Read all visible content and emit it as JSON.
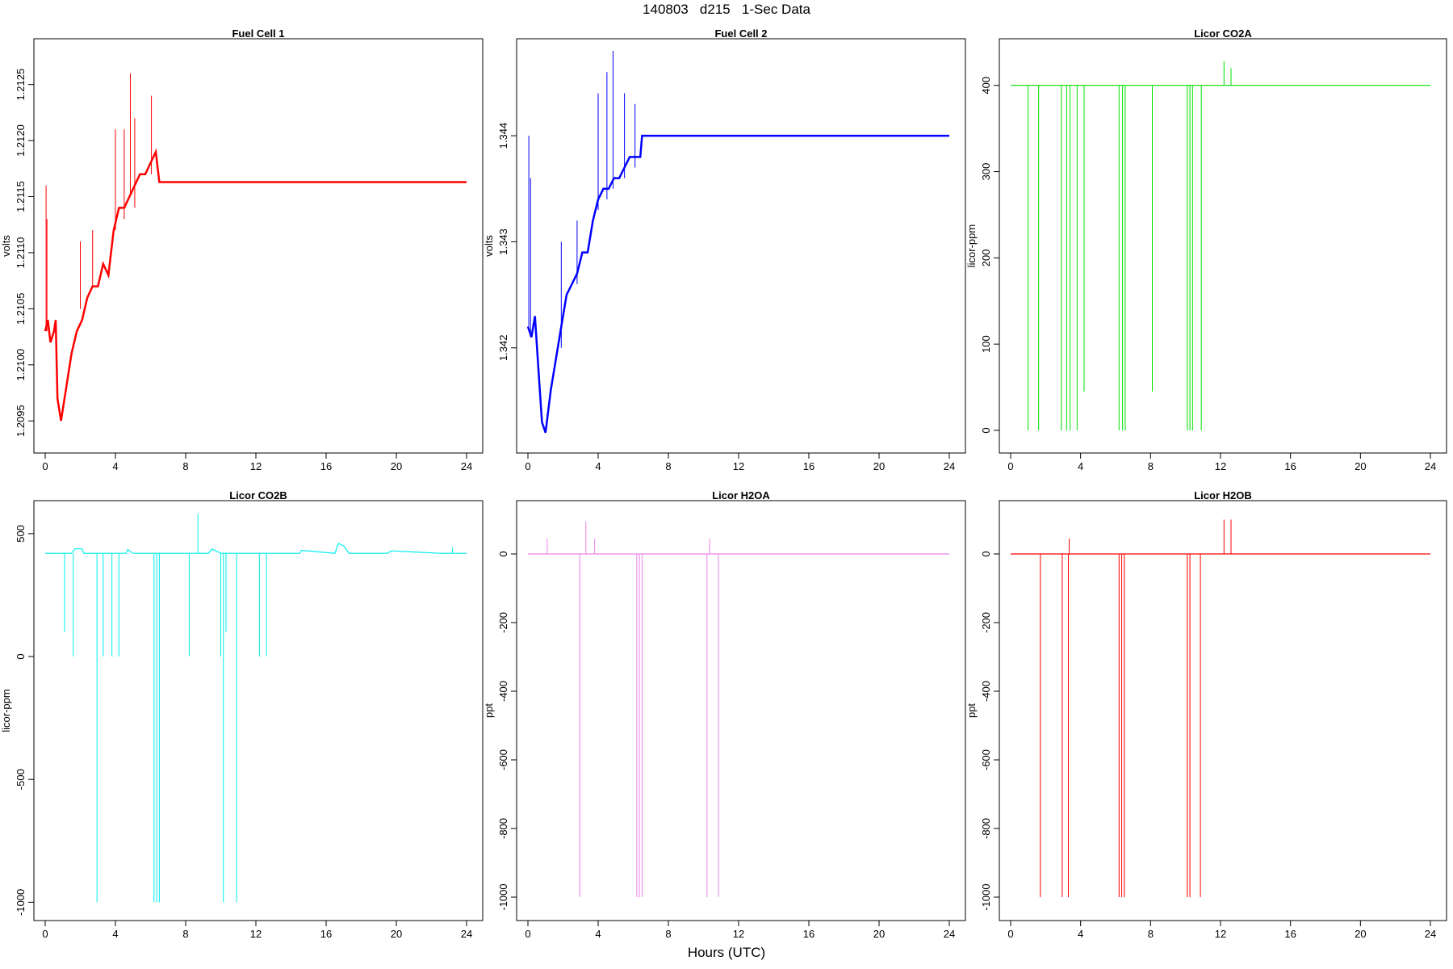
{
  "figure": {
    "title": "140803   d215   1-Sec Data",
    "xlabel": "Hours (UTC)"
  },
  "chart_data": [
    {
      "type": "line",
      "title": "Fuel Cell 1",
      "xlabel": "",
      "ylabel": "volts",
      "color": "#ff0000",
      "xlim": [
        0,
        24
      ],
      "ylim": [
        1.2093,
        1.2128
      ],
      "xticks": [
        0,
        4,
        8,
        12,
        16,
        20,
        24
      ],
      "yticks": [
        1.2095,
        1.21,
        1.2105,
        1.211,
        1.2115,
        1.212,
        1.2125
      ],
      "ytick_labels": [
        "1.2095",
        "1.2100",
        "1.2105",
        "1.2110",
        "1.2115",
        "1.2120",
        "1.2125"
      ],
      "series": [
        {
          "x": [
            0,
            0.15,
            0.3,
            0.5,
            0.6,
            0.7,
            0.9,
            1.2,
            1.5,
            1.8,
            2.1,
            2.4,
            2.7,
            3.0,
            3.3,
            3.6,
            3.9,
            4.2,
            4.5,
            4.8,
            5.1,
            5.4,
            5.7,
            6.0,
            6.3,
            6.5,
            24
          ],
          "y": [
            1.2103,
            1.2104,
            1.2102,
            1.2103,
            1.2104,
            1.2097,
            1.2095,
            1.2098,
            1.2101,
            1.2103,
            1.2104,
            1.2106,
            1.2107,
            1.2107,
            1.2109,
            1.2108,
            1.2112,
            1.2114,
            1.2114,
            1.2115,
            1.2116,
            1.2117,
            1.2117,
            1.2118,
            1.2119,
            1.21163,
            1.21163
          ]
        }
      ],
      "spikes": [
        {
          "x": 0.05,
          "y0": 1.2103,
          "y1": 1.2116
        },
        {
          "x": 0.1,
          "y0": 1.2103,
          "y1": 1.2113
        },
        {
          "x": 2.0,
          "y0": 1.2105,
          "y1": 1.2111
        },
        {
          "x": 2.7,
          "y0": 1.2107,
          "y1": 1.2112
        },
        {
          "x": 4.0,
          "y0": 1.2112,
          "y1": 1.2121
        },
        {
          "x": 4.5,
          "y0": 1.2113,
          "y1": 1.2121
        },
        {
          "x": 4.85,
          "y0": 1.2115,
          "y1": 1.2126
        },
        {
          "x": 5.1,
          "y0": 1.2114,
          "y1": 1.2122
        },
        {
          "x": 6.05,
          "y0": 1.2117,
          "y1": 1.2124
        }
      ]
    },
    {
      "type": "line",
      "title": "Fuel Cell 2",
      "xlabel": "",
      "ylabel": "volts",
      "color": "#0000ff",
      "xlim": [
        0,
        24
      ],
      "ylim": [
        1.3411,
        1.3448
      ],
      "xticks": [
        0,
        4,
        8,
        12,
        16,
        20,
        24
      ],
      "yticks": [
        1.342,
        1.343,
        1.344
      ],
      "ytick_labels": [
        "1.342",
        "1.343",
        "1.344"
      ],
      "series": [
        {
          "x": [
            0,
            0.2,
            0.4,
            0.6,
            0.8,
            1.0,
            1.3,
            1.6,
            1.9,
            2.2,
            2.5,
            2.8,
            3.1,
            3.4,
            3.7,
            4.0,
            4.3,
            4.6,
            4.9,
            5.2,
            5.5,
            5.8,
            6.1,
            6.4,
            6.5,
            24
          ],
          "y": [
            1.3422,
            1.3421,
            1.3423,
            1.3418,
            1.3413,
            1.3412,
            1.3416,
            1.3419,
            1.3422,
            1.3425,
            1.3426,
            1.3427,
            1.3429,
            1.3429,
            1.3432,
            1.3434,
            1.3435,
            1.3435,
            1.3436,
            1.3436,
            1.3437,
            1.3438,
            1.3438,
            1.3438,
            1.344,
            1.344
          ]
        }
      ],
      "spikes": [
        {
          "x": 0.05,
          "y0": 1.3422,
          "y1": 1.344
        },
        {
          "x": 0.15,
          "y0": 1.3421,
          "y1": 1.3436
        },
        {
          "x": 1.9,
          "y0": 1.342,
          "y1": 1.343
        },
        {
          "x": 2.8,
          "y0": 1.3426,
          "y1": 1.3432
        },
        {
          "x": 4.0,
          "y0": 1.3433,
          "y1": 1.3444
        },
        {
          "x": 4.5,
          "y0": 1.3434,
          "y1": 1.3446
        },
        {
          "x": 4.85,
          "y0": 1.3435,
          "y1": 1.3448
        },
        {
          "x": 5.5,
          "y0": 1.3436,
          "y1": 1.3444
        },
        {
          "x": 6.1,
          "y0": 1.3437,
          "y1": 1.3443
        }
      ]
    },
    {
      "type": "line",
      "title": "Licor CO2A",
      "xlabel": "",
      "ylabel": "licor-ppm",
      "color": "#00e000",
      "xlim": [
        0,
        24
      ],
      "ylim": [
        -15,
        440
      ],
      "xticks": [
        0,
        4,
        8,
        12,
        16,
        20,
        24
      ],
      "yticks": [
        0,
        100,
        200,
        300,
        400
      ],
      "ytick_labels": [
        "0",
        "100",
        "200",
        "300",
        "400"
      ],
      "series": [
        {
          "x": [
            0,
            24
          ],
          "y": [
            400,
            400
          ]
        }
      ],
      "spikes": [
        {
          "x": 1.0,
          "y0": 400,
          "y1": 0
        },
        {
          "x": 1.6,
          "y0": 400,
          "y1": 0
        },
        {
          "x": 2.9,
          "y0": 400,
          "y1": 0
        },
        {
          "x": 3.2,
          "y0": 400,
          "y1": 0
        },
        {
          "x": 3.4,
          "y0": 400,
          "y1": 0
        },
        {
          "x": 3.8,
          "y0": 400,
          "y1": 0
        },
        {
          "x": 4.2,
          "y0": 400,
          "y1": 45
        },
        {
          "x": 6.2,
          "y0": 400,
          "y1": 0
        },
        {
          "x": 6.4,
          "y0": 400,
          "y1": 0
        },
        {
          "x": 6.55,
          "y0": 400,
          "y1": 0
        },
        {
          "x": 8.1,
          "y0": 400,
          "y1": 45
        },
        {
          "x": 10.1,
          "y0": 400,
          "y1": 0
        },
        {
          "x": 10.25,
          "y0": 400,
          "y1": 0
        },
        {
          "x": 10.4,
          "y0": 400,
          "y1": 0
        },
        {
          "x": 10.9,
          "y0": 400,
          "y1": 0
        },
        {
          "x": 12.2,
          "y0": 400,
          "y1": 428
        },
        {
          "x": 12.6,
          "y0": 400,
          "y1": 420
        }
      ]
    },
    {
      "type": "line",
      "title": "Licor CO2B",
      "xlabel": "",
      "ylabel": "licor-ppm",
      "color": "#00eeee",
      "xlim": [
        0,
        24
      ],
      "ylim": [
        -1035,
        585
      ],
      "xticks": [
        0,
        4,
        8,
        12,
        16,
        20,
        24
      ],
      "yticks": [
        -1000,
        -500,
        0,
        500
      ],
      "ytick_labels": [
        "-1000",
        "-500",
        "0",
        "500"
      ],
      "series": [
        {
          "x": [
            0,
            1.5,
            1.7,
            2.1,
            2.2,
            4.6,
            4.7,
            5.0,
            9.3,
            9.5,
            10.0,
            14.5,
            14.6,
            16.5,
            16.7,
            17.0,
            17.3,
            19.5,
            19.7,
            22.5,
            23.0,
            24
          ],
          "y": [
            420,
            420,
            438,
            438,
            420,
            420,
            435,
            420,
            420,
            438,
            420,
            420,
            432,
            420,
            460,
            450,
            420,
            420,
            430,
            420,
            420,
            420
          ]
        }
      ],
      "spikes": [
        {
          "x": 1.1,
          "y0": 420,
          "y1": 100
        },
        {
          "x": 1.6,
          "y0": 420,
          "y1": 0
        },
        {
          "x": 2.95,
          "y0": 420,
          "y1": -1000
        },
        {
          "x": 3.3,
          "y0": 420,
          "y1": 0
        },
        {
          "x": 3.8,
          "y0": 420,
          "y1": 0
        },
        {
          "x": 4.2,
          "y0": 420,
          "y1": 0
        },
        {
          "x": 6.2,
          "y0": 420,
          "y1": -1000
        },
        {
          "x": 6.35,
          "y0": 420,
          "y1": -1000
        },
        {
          "x": 6.5,
          "y0": 420,
          "y1": -1000
        },
        {
          "x": 8.2,
          "y0": 420,
          "y1": 0
        },
        {
          "x": 8.7,
          "y0": 420,
          "y1": 580
        },
        {
          "x": 10.0,
          "y0": 420,
          "y1": 0
        },
        {
          "x": 10.15,
          "y0": 420,
          "y1": -1000
        },
        {
          "x": 10.3,
          "y0": 420,
          "y1": 100
        },
        {
          "x": 10.9,
          "y0": 420,
          "y1": -1000
        },
        {
          "x": 12.2,
          "y0": 420,
          "y1": 0
        },
        {
          "x": 12.6,
          "y0": 420,
          "y1": 0
        },
        {
          "x": 23.2,
          "y0": 420,
          "y1": 445
        }
      ]
    },
    {
      "type": "line",
      "title": "Licor H2OA",
      "xlabel": "",
      "ylabel": "ppt",
      "color": "#ee82ee",
      "xlim": [
        0,
        24
      ],
      "ylim": [
        -1040,
        120
      ],
      "xticks": [
        0,
        4,
        8,
        12,
        16,
        20,
        24
      ],
      "yticks": [
        -1000,
        -800,
        -600,
        -400,
        -200,
        0
      ],
      "ytick_labels": [
        "-1000",
        "-800",
        "-600",
        "-400",
        "-200",
        "0"
      ],
      "series": [
        {
          "x": [
            0,
            24
          ],
          "y": [
            0,
            0
          ]
        }
      ],
      "spikes": [
        {
          "x": 1.1,
          "y0": 0,
          "y1": 45
        },
        {
          "x": 2.95,
          "y0": 0,
          "y1": -1000
        },
        {
          "x": 3.3,
          "y0": 0,
          "y1": 95
        },
        {
          "x": 3.8,
          "y0": 0,
          "y1": 45
        },
        {
          "x": 6.2,
          "y0": 0,
          "y1": -1000
        },
        {
          "x": 6.35,
          "y0": 0,
          "y1": -1000
        },
        {
          "x": 6.5,
          "y0": 0,
          "y1": -1000
        },
        {
          "x": 10.2,
          "y0": 0,
          "y1": -1000
        },
        {
          "x": 10.35,
          "y0": 0,
          "y1": 45
        },
        {
          "x": 10.85,
          "y0": 0,
          "y1": -1000
        }
      ]
    },
    {
      "type": "line",
      "title": "Licor H2OB",
      "xlabel": "",
      "ylabel": "ppt",
      "color": "#ff0000",
      "xlim": [
        0,
        24
      ],
      "ylim": [
        -1040,
        120
      ],
      "xticks": [
        0,
        4,
        8,
        12,
        16,
        20,
        24
      ],
      "yticks": [
        -1000,
        -800,
        -600,
        -400,
        -200,
        0
      ],
      "ytick_labels": [
        "-1000",
        "-800",
        "-600",
        "-400",
        "-200",
        "0"
      ],
      "series": [
        {
          "x": [
            0,
            24
          ],
          "y": [
            0,
            0
          ]
        }
      ],
      "spikes": [
        {
          "x": 1.7,
          "y0": 0,
          "y1": -1000
        },
        {
          "x": 2.95,
          "y0": 0,
          "y1": -1000
        },
        {
          "x": 3.3,
          "y0": 0,
          "y1": -1000
        },
        {
          "x": 3.35,
          "y0": 0,
          "y1": 45
        },
        {
          "x": 6.2,
          "y0": 0,
          "y1": -1000
        },
        {
          "x": 6.35,
          "y0": 0,
          "y1": -1000
        },
        {
          "x": 6.5,
          "y0": 0,
          "y1": -1000
        },
        {
          "x": 10.1,
          "y0": 0,
          "y1": -1000
        },
        {
          "x": 10.25,
          "y0": 0,
          "y1": -1000
        },
        {
          "x": 10.85,
          "y0": 0,
          "y1": -1000
        },
        {
          "x": 12.2,
          "y0": 0,
          "y1": 100
        },
        {
          "x": 12.6,
          "y0": 0,
          "y1": 100
        }
      ]
    }
  ]
}
